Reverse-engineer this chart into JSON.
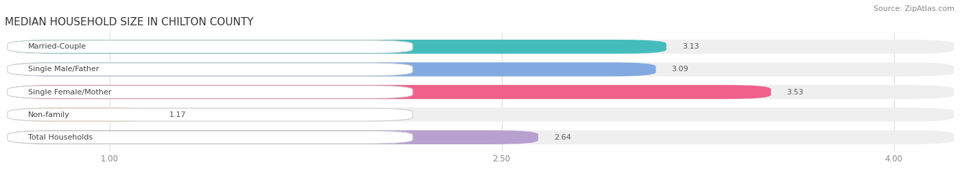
{
  "title": "MEDIAN HOUSEHOLD SIZE IN CHILTON COUNTY",
  "source": "Source: ZipAtlas.com",
  "categories": [
    "Married-Couple",
    "Single Male/Father",
    "Single Female/Mother",
    "Non-family",
    "Total Households"
  ],
  "values": [
    3.13,
    3.09,
    3.53,
    1.17,
    2.64
  ],
  "bar_colors": [
    "#45BCBC",
    "#82AAE0",
    "#F0608A",
    "#F5C99A",
    "#B8A0D0"
  ],
  "xlim_left": 0.6,
  "xlim_right": 4.25,
  "xticks": [
    1.0,
    2.5,
    4.0
  ],
  "title_fontsize": 11,
  "source_fontsize": 8,
  "bar_height": 0.62,
  "background_color": "#FFFFFF",
  "bar_bg_color": "#EFEFEF",
  "value_color": "#555555",
  "label_text_color": "#444444",
  "grid_color": "#DDDDDD"
}
